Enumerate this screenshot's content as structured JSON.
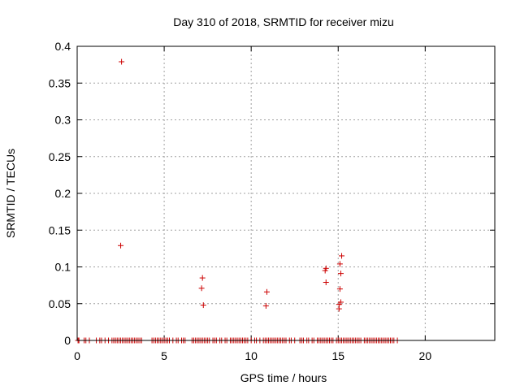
{
  "chart_data": {
    "type": "scatter",
    "title": "Day 310 of 2018, SRMTID for receiver mizu",
    "xlabel": "GPS time / hours",
    "ylabel": "SRMTID / TECUs",
    "xlim": [
      0,
      24
    ],
    "ylim": [
      0,
      0.4
    ],
    "xticks": [
      0,
      5,
      10,
      15,
      20
    ],
    "xtick_labels": [
      "0",
      "5",
      "10",
      "15",
      "20"
    ],
    "yticks": [
      0,
      0.05,
      0.1,
      0.15,
      0.2,
      0.25,
      0.3,
      0.35,
      0.4
    ],
    "ytick_labels": [
      "0",
      "0.05",
      "0.1",
      "0.15",
      "0.2",
      "0.25",
      "0.3",
      "0.35",
      "0.4"
    ],
    "grid": true,
    "marker": "+",
    "marker_color": "#cc0000",
    "points": [
      {
        "x": 2.55,
        "y": 0.379
      },
      {
        "x": 2.5,
        "y": 0.129
      },
      {
        "x": 7.2,
        "y": 0.085
      },
      {
        "x": 7.15,
        "y": 0.071
      },
      {
        "x": 7.25,
        "y": 0.048
      },
      {
        "x": 10.9,
        "y": 0.066
      },
      {
        "x": 10.85,
        "y": 0.047
      },
      {
        "x": 14.3,
        "y": 0.098
      },
      {
        "x": 14.25,
        "y": 0.095
      },
      {
        "x": 14.3,
        "y": 0.079
      },
      {
        "x": 15.2,
        "y": 0.115
      },
      {
        "x": 15.1,
        "y": 0.104
      },
      {
        "x": 15.15,
        "y": 0.091
      },
      {
        "x": 15.1,
        "y": 0.07
      },
      {
        "x": 15.15,
        "y": 0.052
      },
      {
        "x": 15.05,
        "y": 0.049
      },
      {
        "x": 15.05,
        "y": 0.043
      }
    ],
    "zero_points_x": [
      0.05,
      0.1,
      0.4,
      0.5,
      0.7,
      1.1,
      1.3,
      1.4,
      1.6,
      1.8,
      2.0,
      2.1,
      2.2,
      2.3,
      2.4,
      2.5,
      2.6,
      2.7,
      2.8,
      2.9,
      3.0,
      3.1,
      3.2,
      3.3,
      3.4,
      3.5,
      3.6,
      3.7,
      4.3,
      4.4,
      4.5,
      4.6,
      4.7,
      4.8,
      4.9,
      5.0,
      5.1,
      5.2,
      5.3,
      5.5,
      5.7,
      5.8,
      6.0,
      6.1,
      6.2,
      6.6,
      6.7,
      6.8,
      6.9,
      7.0,
      7.1,
      7.2,
      7.3,
      7.4,
      7.5,
      7.6,
      7.8,
      7.9,
      8.0,
      8.2,
      8.3,
      8.5,
      8.6,
      8.8,
      8.9,
      9.0,
      9.1,
      9.2,
      9.3,
      9.4,
      9.5,
      9.6,
      9.7,
      9.8,
      10.0,
      10.2,
      10.3,
      10.5,
      10.7,
      10.8,
      10.9,
      11.0,
      11.1,
      11.2,
      11.3,
      11.4,
      11.5,
      11.6,
      11.7,
      11.8,
      11.9,
      12.0,
      12.2,
      12.3,
      12.5,
      12.8,
      12.9,
      13.0,
      13.2,
      13.3,
      13.5,
      13.6,
      13.8,
      13.9,
      14.0,
      14.1,
      14.2,
      14.3,
      14.4,
      14.5,
      14.6,
      14.7,
      14.9,
      15.0,
      15.1,
      15.2,
      15.3,
      15.4,
      15.5,
      15.6,
      15.7,
      15.8,
      15.9,
      16.0,
      16.1,
      16.2,
      16.3,
      16.5,
      16.6,
      16.7,
      16.8,
      16.9,
      17.0,
      17.1,
      17.2,
      17.3,
      17.4,
      17.5,
      17.6,
      17.7,
      17.8,
      17.9,
      18.0,
      18.1,
      18.2,
      18.4
    ]
  }
}
